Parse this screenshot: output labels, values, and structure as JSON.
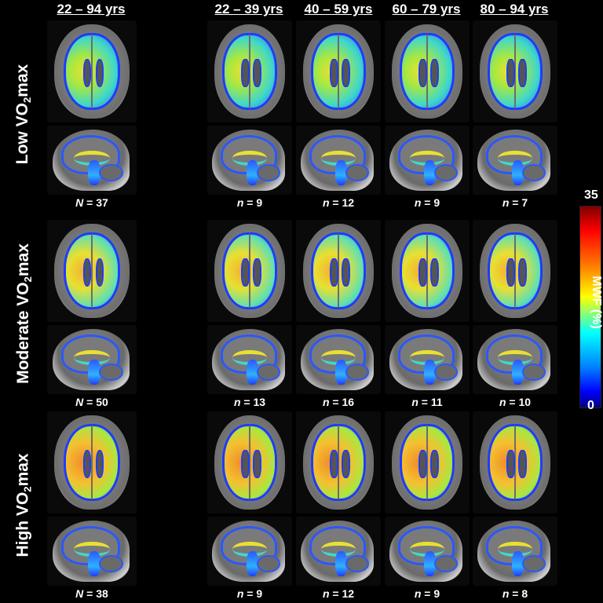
{
  "columns": [
    "22 – 94 yrs",
    "22 – 39 yrs",
    "40 – 59 yrs",
    "60 – 79 yrs",
    "80 – 94 yrs"
  ],
  "rows": [
    {
      "label_main": "Low VO",
      "label_sub": "2",
      "label_tail": "max",
      "level": "low",
      "counts": [
        {
          "letter": "N",
          "text": " = 37"
        },
        {
          "letter": "n",
          "text": " = 9"
        },
        {
          "letter": "n",
          "text": " = 12"
        },
        {
          "letter": "n",
          "text": " = 9"
        },
        {
          "letter": "n",
          "text": " = 7"
        }
      ]
    },
    {
      "label_main": "Moderate VO",
      "label_sub": "2",
      "label_tail": "max",
      "level": "med",
      "counts": [
        {
          "letter": "N",
          "text": " = 50"
        },
        {
          "letter": "n",
          "text": " = 13"
        },
        {
          "letter": "n",
          "text": " = 16"
        },
        {
          "letter": "n",
          "text": " = 11"
        },
        {
          "letter": "n",
          "text": " = 10"
        }
      ]
    },
    {
      "label_main": "High VO",
      "label_sub": "2",
      "label_tail": "max",
      "level": "high",
      "counts": [
        {
          "letter": "N",
          "text": " = 38"
        },
        {
          "letter": "n",
          "text": " = 9"
        },
        {
          "letter": "n",
          "text": " = 12"
        },
        {
          "letter": "n",
          "text": " = 9"
        },
        {
          "letter": "n",
          "text": " = 8"
        }
      ]
    }
  ],
  "colorbar": {
    "label": "MWF (%)",
    "max": "35",
    "min": "0",
    "colors": [
      "#800000",
      "#ff0000",
      "#ff8000",
      "#ffff00",
      "#00ffff",
      "#0080ff",
      "#0000ff",
      "#000080"
    ]
  }
}
